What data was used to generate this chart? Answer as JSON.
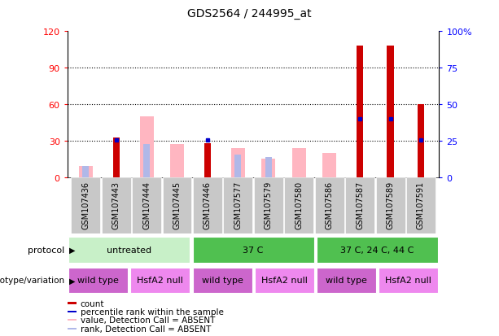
{
  "title": "GDS2564 / 244995_at",
  "samples": [
    "GSM107436",
    "GSM107443",
    "GSM107444",
    "GSM107445",
    "GSM107446",
    "GSM107577",
    "GSM107579",
    "GSM107580",
    "GSM107586",
    "GSM107587",
    "GSM107589",
    "GSM107591"
  ],
  "count_values": [
    0,
    33,
    0,
    0,
    28,
    0,
    0,
    0,
    0,
    108,
    108,
    60
  ],
  "percentile_rank": [
    null,
    26,
    null,
    null,
    26,
    null,
    null,
    null,
    null,
    40,
    40,
    26
  ],
  "absent_value": [
    8,
    0,
    42,
    23,
    0,
    20,
    13,
    20,
    17,
    0,
    0,
    0
  ],
  "absent_rank": [
    8,
    0,
    23,
    0,
    0,
    16,
    14,
    0,
    0,
    0,
    0,
    0
  ],
  "ylim_left": [
    0,
    120
  ],
  "ylim_right": [
    0,
    100
  ],
  "yticks_left": [
    0,
    30,
    60,
    90,
    120
  ],
  "ytick_labels_left": [
    "0",
    "30",
    "60",
    "90",
    "120"
  ],
  "yticks_right": [
    0,
    25,
    50,
    75,
    100
  ],
  "ytick_labels_right": [
    "0",
    "25",
    "50",
    "75",
    "100%"
  ],
  "protocol_groups": [
    {
      "label": "untreated",
      "start": 0,
      "end": 4,
      "color": "#c8f0c8"
    },
    {
      "label": "37 C",
      "start": 4,
      "end": 8,
      "color": "#50c050"
    },
    {
      "label": "37 C, 24 C, 44 C",
      "start": 8,
      "end": 12,
      "color": "#50c050"
    }
  ],
  "genotype_groups": [
    {
      "label": "wild type",
      "start": 0,
      "end": 2,
      "color": "#cc66cc"
    },
    {
      "label": "HsfA2 null",
      "start": 2,
      "end": 4,
      "color": "#ee88ee"
    },
    {
      "label": "wild type",
      "start": 4,
      "end": 6,
      "color": "#cc66cc"
    },
    {
      "label": "HsfA2 null",
      "start": 6,
      "end": 8,
      "color": "#ee88ee"
    },
    {
      "label": "wild type",
      "start": 8,
      "end": 10,
      "color": "#cc66cc"
    },
    {
      "label": "HsfA2 null",
      "start": 10,
      "end": 12,
      "color": "#ee88ee"
    }
  ],
  "color_count": "#cc0000",
  "color_percentile": "#0000cc",
  "color_absent_value": "#ffb6c1",
  "color_absent_rank": "#b0b8e8",
  "bg_color": "#ffffff",
  "sample_bg_color": "#c8c8c8",
  "legend_items": [
    {
      "color": "#cc0000",
      "label": "count"
    },
    {
      "color": "#0000cc",
      "label": "percentile rank within the sample"
    },
    {
      "color": "#ffb6c1",
      "label": "value, Detection Call = ABSENT"
    },
    {
      "color": "#b0b8e8",
      "label": "rank, Detection Call = ABSENT"
    }
  ]
}
